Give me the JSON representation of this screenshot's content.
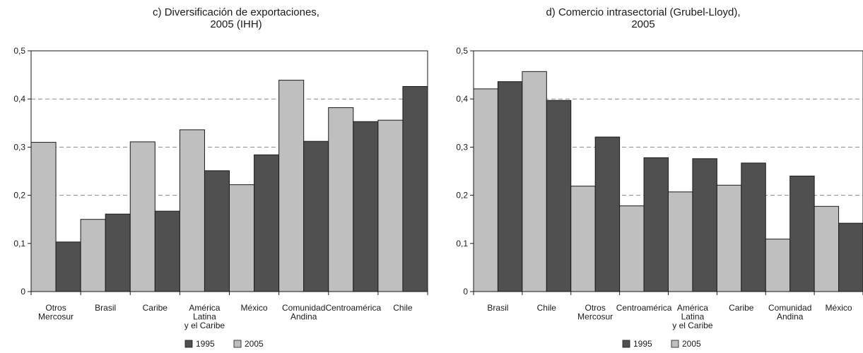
{
  "colors": {
    "series_1995": "#505050",
    "series_2005": "#bfbfbf",
    "outline": "#1a1a1a",
    "grid": "#8c8c8c"
  },
  "chart_data": [
    {
      "type": "bar",
      "title_lines": [
        "c) Diversificación de exportaciones,",
        "2005 (IHH)"
      ],
      "categories": [
        [
          "Otros",
          "Mercosur"
        ],
        [
          "Brasil"
        ],
        [
          "Caribe"
        ],
        [
          "América",
          "Latina",
          "y el Caribe"
        ],
        [
          "México"
        ],
        [
          "Comunidad",
          "Andina"
        ],
        [
          "Centroamérica"
        ],
        [
          "Chile"
        ]
      ],
      "series": [
        {
          "name": "2005",
          "values": [
            0.31,
            0.15,
            0.311,
            0.336,
            0.222,
            0.439,
            0.382,
            0.356
          ]
        },
        {
          "name": "1995",
          "values": [
            0.103,
            0.161,
            0.167,
            0.251,
            0.284,
            0.312,
            0.353,
            0.426
          ]
        }
      ],
      "ylim": [
        0,
        0.5
      ],
      "yticks": [
        0,
        0.1,
        0.2,
        0.3,
        0.4,
        0.5
      ],
      "ytick_labels": [
        "0",
        "0,1",
        "0,2",
        "0,3",
        "0,4",
        "0,5"
      ],
      "grid": true,
      "legend": [
        "1995",
        "2005"
      ],
      "legend_position": "bottom-center"
    },
    {
      "type": "bar",
      "title_lines": [
        "d) Comercio intrasectorial (Grubel-Lloyd),",
        "2005"
      ],
      "categories": [
        [
          "Brasil"
        ],
        [
          "Chile"
        ],
        [
          "Otros",
          "Mercosur"
        ],
        [
          "Centroamérica"
        ],
        [
          "América",
          "Latina",
          "y el Caribe"
        ],
        [
          "Caribe"
        ],
        [
          "Comunidad",
          "Andina"
        ],
        [
          "México"
        ]
      ],
      "series": [
        {
          "name": "2005",
          "values": [
            0.421,
            0.457,
            0.219,
            0.178,
            0.207,
            0.221,
            0.109,
            0.177
          ]
        },
        {
          "name": "1995",
          "values": [
            0.436,
            0.397,
            0.321,
            0.278,
            0.276,
            0.267,
            0.24,
            0.142
          ]
        }
      ],
      "ylim": [
        0,
        0.5
      ],
      "yticks": [
        0,
        0.1,
        0.2,
        0.3,
        0.4,
        0.5
      ],
      "ytick_labels": [
        "0",
        "0,1",
        "0,2",
        "0,3",
        "0,4",
        "0,5"
      ],
      "grid": true,
      "legend": [
        "1995",
        "2005"
      ],
      "legend_position": "bottom-center"
    }
  ]
}
